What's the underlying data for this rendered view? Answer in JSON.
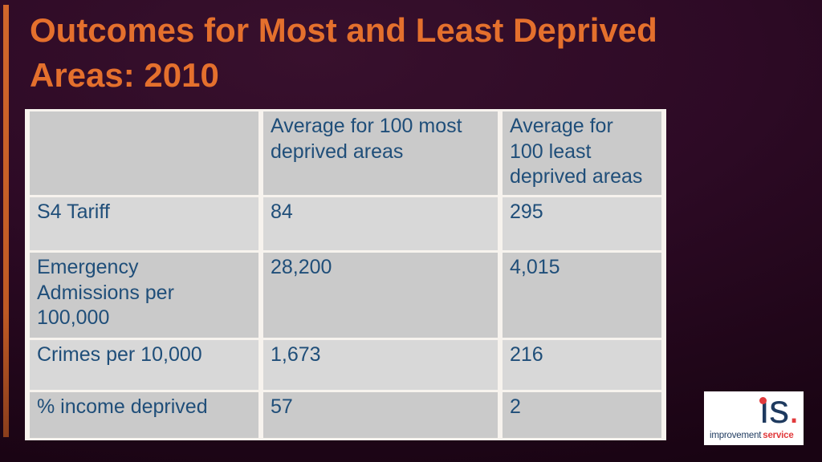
{
  "slide": {
    "title": "Outcomes for Most and Least Deprived\nAreas: 2010"
  },
  "table": {
    "header": [
      "",
      "Average for 100 most\ndeprived areas",
      "Average for\n100 least\ndeprived areas"
    ],
    "rows": [
      {
        "label": "S4 Tariff",
        "most": "84",
        "least": "295"
      },
      {
        "label": "Emergency\nAdmissions per\n100,000",
        "most": "28,200",
        "least": "4,015"
      },
      {
        "label": "Crimes per 10,000",
        "most": "1,673",
        "least": "216"
      },
      {
        "label": "% income deprived",
        "most": "57",
        "least": "2"
      }
    ]
  },
  "logo": {
    "is_letters": "ıs",
    "is_period": ".",
    "improvement": "improvement",
    "service": "service"
  },
  "colors": {
    "title_orange": "#E4702D",
    "table_text_navy": "#1F4E79",
    "band_dark": "#CACACA",
    "band_light": "#D8D8D8",
    "separator_white": "#F7F3EE",
    "logo_navy": "#1E3A5F",
    "logo_red": "#E13A3C",
    "accent_orange": "#C05A24",
    "background_purple": "#2D0A25"
  }
}
